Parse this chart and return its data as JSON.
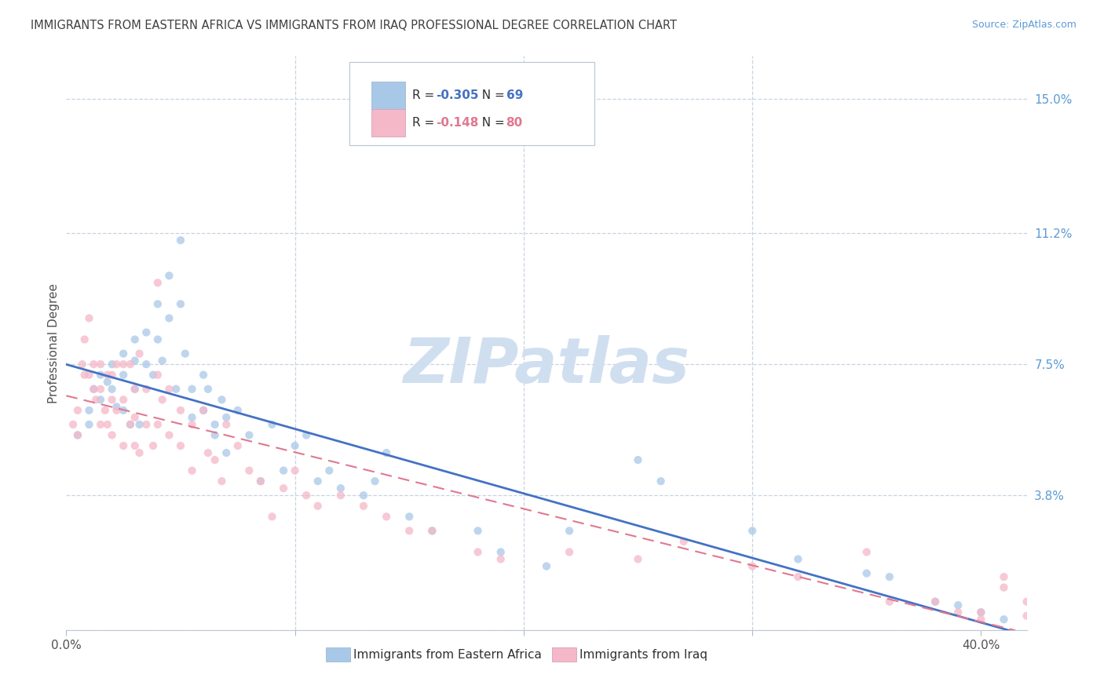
{
  "title": "IMMIGRANTS FROM EASTERN AFRICA VS IMMIGRANTS FROM IRAQ PROFESSIONAL DEGREE CORRELATION CHART",
  "source": "Source: ZipAtlas.com",
  "xlim": [
    0.0,
    0.42
  ],
  "ylim": [
    0.0,
    0.162
  ],
  "ylabel_ticks": [
    0.0,
    0.038,
    0.075,
    0.112,
    0.15
  ],
  "ylabel_labels": [
    "",
    "3.8%",
    "7.5%",
    "11.2%",
    "15.0%"
  ],
  "xtick_positions": [
    0.0,
    0.1,
    0.2,
    0.3,
    0.4
  ],
  "xtick_labels": [
    "0.0%",
    "",
    "",
    "",
    "40.0%"
  ],
  "series1_label": "Immigrants from Eastern Africa",
  "series1_color": "#a8c8e8",
  "series1_line_color": "#4472c4",
  "series1_R": "-0.305",
  "series1_N": "69",
  "series2_label": "Immigrants from Iraq",
  "series2_color": "#f4b8c8",
  "series2_line_color": "#e07890",
  "series2_R": "-0.148",
  "series2_N": "80",
  "watermark": "ZIPatlas",
  "watermark_color": "#d0dff0",
  "grid_color": "#c8d4e0",
  "axis_color": "#5b9bd5",
  "title_color": "#404040",
  "title_fontsize": 10.5,
  "blue_scatter_x": [
    0.005,
    0.01,
    0.01,
    0.012,
    0.015,
    0.015,
    0.018,
    0.02,
    0.02,
    0.022,
    0.025,
    0.025,
    0.025,
    0.028,
    0.03,
    0.03,
    0.03,
    0.032,
    0.035,
    0.035,
    0.038,
    0.04,
    0.04,
    0.042,
    0.045,
    0.045,
    0.048,
    0.05,
    0.05,
    0.052,
    0.055,
    0.055,
    0.06,
    0.06,
    0.062,
    0.065,
    0.065,
    0.068,
    0.07,
    0.07,
    0.075,
    0.08,
    0.085,
    0.09,
    0.095,
    0.1,
    0.105,
    0.11,
    0.115,
    0.12,
    0.13,
    0.135,
    0.14,
    0.15,
    0.16,
    0.18,
    0.19,
    0.21,
    0.22,
    0.25,
    0.26,
    0.3,
    0.32,
    0.35,
    0.36,
    0.38,
    0.39,
    0.4,
    0.41
  ],
  "blue_scatter_y": [
    0.055,
    0.058,
    0.062,
    0.068,
    0.065,
    0.072,
    0.07,
    0.075,
    0.068,
    0.063,
    0.078,
    0.072,
    0.062,
    0.058,
    0.082,
    0.076,
    0.068,
    0.058,
    0.084,
    0.075,
    0.072,
    0.092,
    0.082,
    0.076,
    0.1,
    0.088,
    0.068,
    0.11,
    0.092,
    0.078,
    0.068,
    0.06,
    0.072,
    0.062,
    0.068,
    0.058,
    0.055,
    0.065,
    0.06,
    0.05,
    0.062,
    0.055,
    0.042,
    0.058,
    0.045,
    0.052,
    0.055,
    0.042,
    0.045,
    0.04,
    0.038,
    0.042,
    0.05,
    0.032,
    0.028,
    0.028,
    0.022,
    0.018,
    0.028,
    0.048,
    0.042,
    0.028,
    0.02,
    0.016,
    0.015,
    0.008,
    0.007,
    0.005,
    0.003
  ],
  "pink_scatter_x": [
    0.003,
    0.005,
    0.005,
    0.007,
    0.008,
    0.008,
    0.01,
    0.01,
    0.012,
    0.012,
    0.013,
    0.015,
    0.015,
    0.015,
    0.017,
    0.018,
    0.018,
    0.02,
    0.02,
    0.02,
    0.022,
    0.022,
    0.025,
    0.025,
    0.025,
    0.028,
    0.028,
    0.03,
    0.03,
    0.03,
    0.032,
    0.032,
    0.035,
    0.035,
    0.038,
    0.04,
    0.04,
    0.04,
    0.042,
    0.045,
    0.045,
    0.05,
    0.05,
    0.055,
    0.055,
    0.06,
    0.062,
    0.065,
    0.068,
    0.07,
    0.075,
    0.08,
    0.085,
    0.09,
    0.095,
    0.1,
    0.105,
    0.11,
    0.12,
    0.13,
    0.14,
    0.15,
    0.16,
    0.18,
    0.19,
    0.22,
    0.25,
    0.27,
    0.3,
    0.32,
    0.35,
    0.36,
    0.38,
    0.39,
    0.4,
    0.4,
    0.41,
    0.41,
    0.42,
    0.42
  ],
  "pink_scatter_y": [
    0.058,
    0.062,
    0.055,
    0.075,
    0.082,
    0.072,
    0.088,
    0.072,
    0.068,
    0.075,
    0.065,
    0.075,
    0.068,
    0.058,
    0.062,
    0.072,
    0.058,
    0.072,
    0.065,
    0.055,
    0.075,
    0.062,
    0.075,
    0.065,
    0.052,
    0.058,
    0.075,
    0.068,
    0.06,
    0.052,
    0.05,
    0.078,
    0.068,
    0.058,
    0.052,
    0.098,
    0.072,
    0.058,
    0.065,
    0.068,
    0.055,
    0.062,
    0.052,
    0.058,
    0.045,
    0.062,
    0.05,
    0.048,
    0.042,
    0.058,
    0.052,
    0.045,
    0.042,
    0.032,
    0.04,
    0.045,
    0.038,
    0.035,
    0.038,
    0.035,
    0.032,
    0.028,
    0.028,
    0.022,
    0.02,
    0.022,
    0.02,
    0.025,
    0.018,
    0.015,
    0.022,
    0.008,
    0.008,
    0.005,
    0.005,
    0.003,
    0.015,
    0.012,
    0.008,
    0.004
  ]
}
